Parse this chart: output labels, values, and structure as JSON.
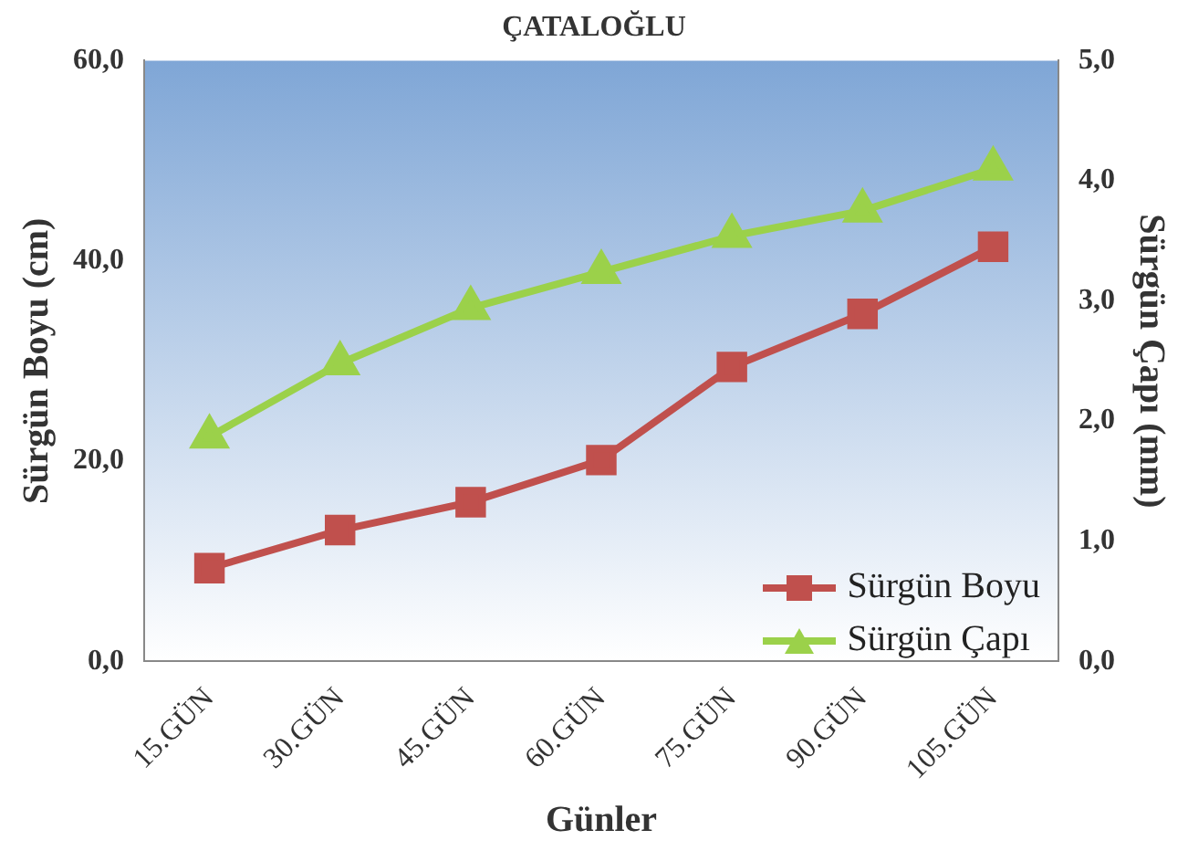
{
  "chart_data": {
    "type": "line",
    "title": "ÇATALOĞLU",
    "xlabel": "Günler",
    "ylabel": "Sürgün Boyu (cm)",
    "y2label": "Sürgün Çapı (mm)",
    "categories": [
      "15.GÜN",
      "30.GÜN",
      "45.GÜN",
      "60.GÜN",
      "75.GÜN",
      "90.GÜN",
      "105.GÜN"
    ],
    "series": [
      {
        "name": "Sürgün Boyu",
        "color": "#c0504d",
        "marker": "square",
        "values": [
          9.3,
          13.1,
          15.9,
          20.1,
          29.4,
          34.7,
          41.4
        ]
      },
      {
        "name": "Sürgün Çapı",
        "color": "#9bd14a",
        "marker": "triangle",
        "axis": "y2",
        "values": [
          1.87,
          2.48,
          2.94,
          3.24,
          3.54,
          3.75,
          4.1
        ]
      }
    ],
    "ylim": [
      0,
      60
    ],
    "yticks": [
      {
        "value": 0,
        "label": "0,0"
      },
      {
        "value": 20,
        "label": "20,0"
      },
      {
        "value": 40,
        "label": "40,0"
      },
      {
        "value": 60,
        "label": "60,0"
      }
    ],
    "y2lim": [
      0,
      5
    ],
    "y2ticks": [
      {
        "value": 0,
        "label": "0,0"
      },
      {
        "value": 1,
        "label": "1,0"
      },
      {
        "value": 2,
        "label": "2,0"
      },
      {
        "value": 3,
        "label": "3,0"
      },
      {
        "value": 4,
        "label": "4,0"
      },
      {
        "value": 5,
        "label": "5,0"
      }
    ],
    "grid": false,
    "legend": "bottom right"
  }
}
